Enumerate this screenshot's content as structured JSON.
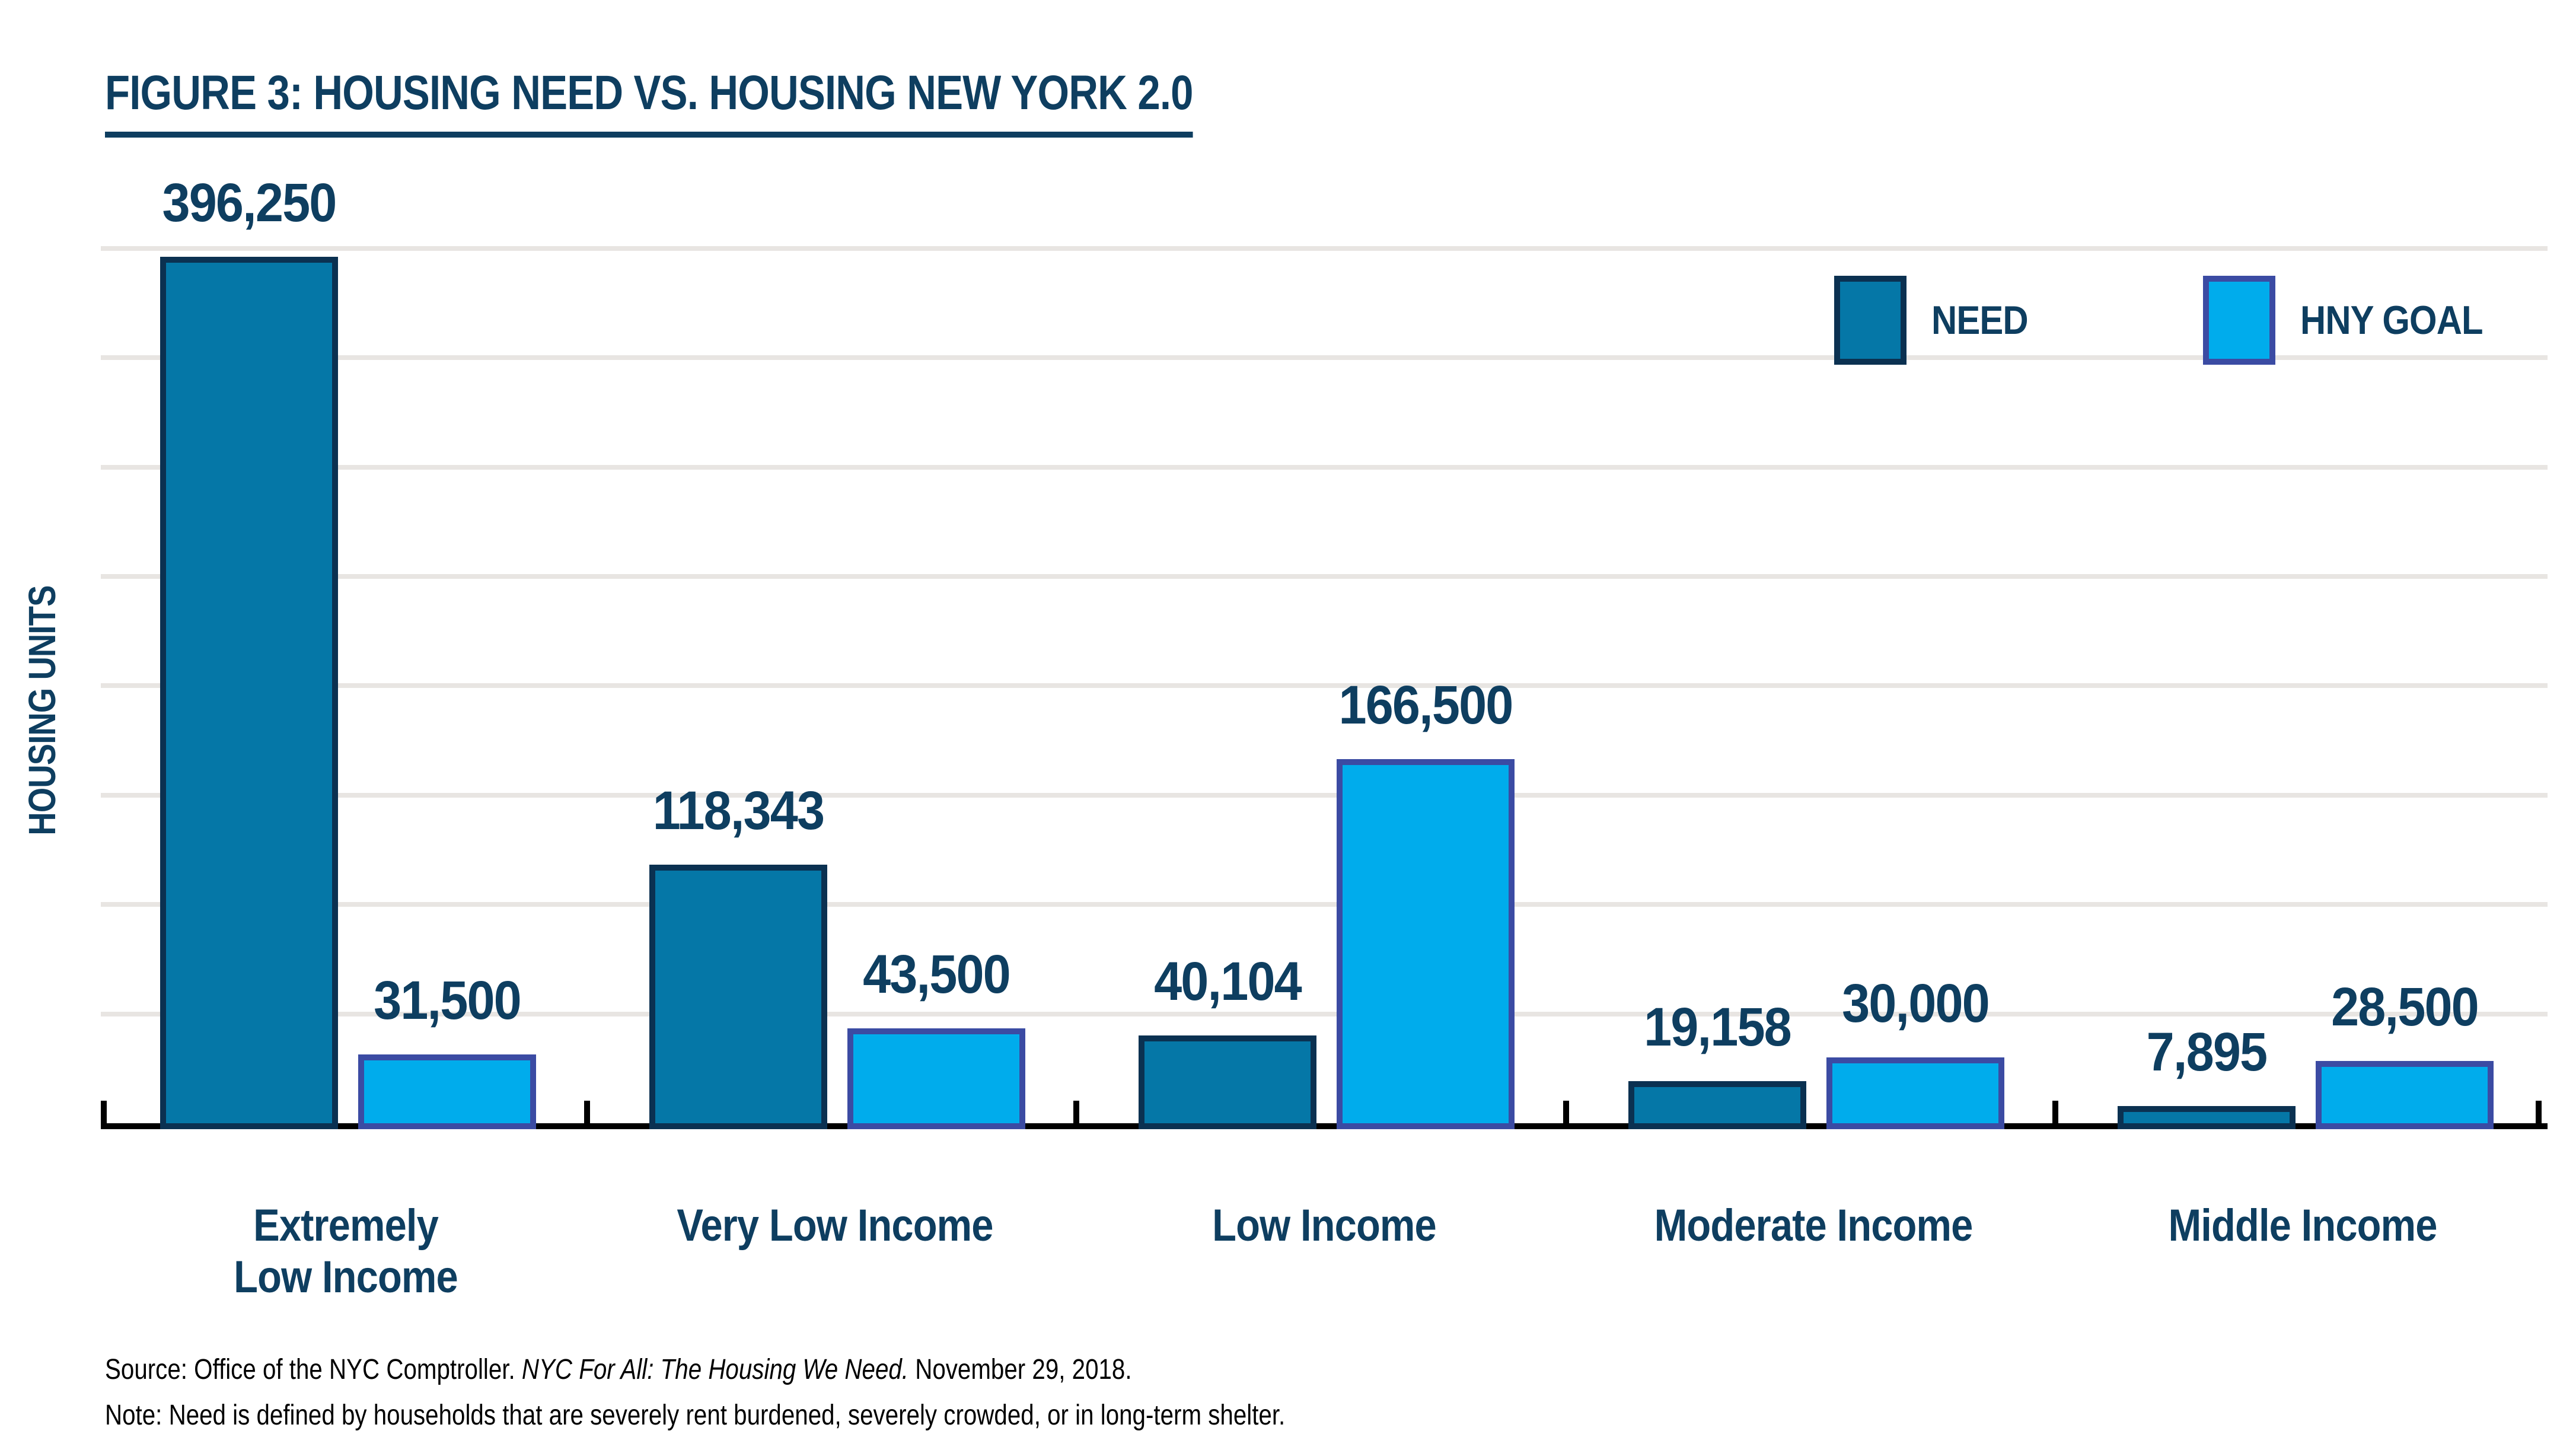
{
  "title": "FIGURE 3: HOUSING NEED VS. HOUSING NEW YORK 2.0",
  "legend": {
    "need_label": "NEED",
    "hny_goal_label": "HNY GOAL"
  },
  "source": {
    "prefix": "Source: Office of the NYC Comptroller. ",
    "citation": "NYC For All: The Housing We Need.",
    "suffix": " November 29, 2018."
  },
  "note": "Note: Need is defined by households that are severely rent burdened, severely crowded, or in long-term shelter.",
  "colors": {
    "need_fill": "#0577A7",
    "need_border": "#0B3151",
    "goal_fill": "#00ACEC",
    "goal_border": "#3B4BA3",
    "text_navy": "#0E3E60",
    "gridline": "#E8E5E2",
    "axis": "#000000"
  },
  "chart_data": {
    "type": "bar",
    "title": "FIGURE 3: HOUSING NEED VS. HOUSING NEW YORK 2.0",
    "ylabel": "HOUSING UNITS",
    "xlabel": "",
    "categories": [
      "Extremely\nLow Income",
      "Very Low Income",
      "Low Income",
      "Moderate Income",
      "Middle Income"
    ],
    "series": [
      {
        "name": "NEED",
        "values": [
          396250,
          118343,
          40104,
          19158,
          7895
        ]
      },
      {
        "name": "HNY GOAL",
        "values": [
          31500,
          43500,
          166500,
          30000,
          28500
        ]
      }
    ],
    "ylim": [
      0,
      420000
    ],
    "gridline_interval": 50000,
    "gridline_count": 8,
    "grid": "horizontal-only",
    "value_labels_shown": true,
    "legend_position": "top-right"
  }
}
